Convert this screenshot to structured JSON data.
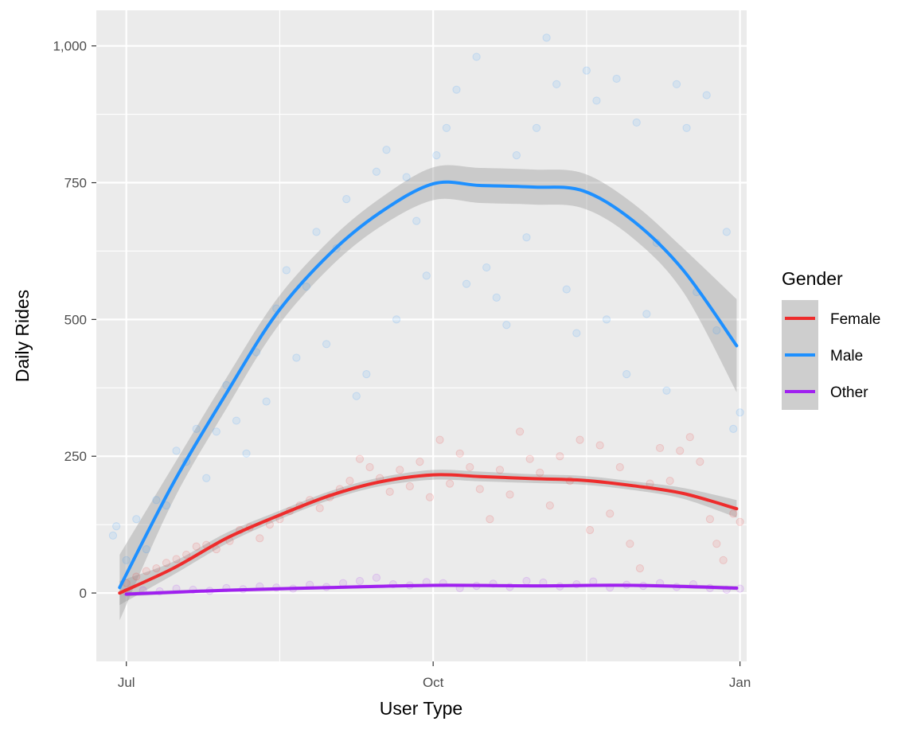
{
  "chart_data": {
    "type": "scatter",
    "title": "",
    "xlabel": "User Type",
    "ylabel": "Daily Rides",
    "x_axis": {
      "type": "date",
      "range": [
        "2018-06-22",
        "2019-01-03"
      ],
      "ticks": [
        {
          "value": "2018-07-01",
          "label": "Jul"
        },
        {
          "value": "2018-10-01",
          "label": "Oct"
        },
        {
          "value": "2019-01-01",
          "label": "Jan"
        }
      ],
      "minor_ticks": [
        "2018-08-16",
        "2018-11-16"
      ]
    },
    "y_axis": {
      "range": [
        -125,
        1065
      ],
      "ticks": [
        {
          "value": 0,
          "label": "0"
        },
        {
          "value": 250,
          "label": "250"
        },
        {
          "value": 500,
          "label": "500"
        },
        {
          "value": 750,
          "label": "750"
        },
        {
          "value": 1000,
          "label": "1,000"
        }
      ],
      "minor_ticks": [
        125,
        375,
        625,
        875
      ]
    },
    "grid": true,
    "legend": {
      "title": "Gender",
      "placement": "right",
      "entries": [
        "Female",
        "Male",
        "Other"
      ]
    },
    "series": [
      {
        "name": "Female",
        "color": "#EE2C2C",
        "smooth": [
          [
            "2018-06-29",
            0
          ],
          [
            "2018-07-15",
            45
          ],
          [
            "2018-07-31",
            100
          ],
          [
            "2018-08-15",
            140
          ],
          [
            "2018-08-31",
            178
          ],
          [
            "2018-09-15",
            203
          ],
          [
            "2018-10-01",
            216
          ],
          [
            "2018-10-15",
            213
          ],
          [
            "2018-10-31",
            209
          ],
          [
            "2018-11-15",
            206
          ],
          [
            "2018-11-30",
            196
          ],
          [
            "2018-12-15",
            182
          ],
          [
            "2018-12-31",
            154
          ]
        ],
        "band_halfwidth": [
          22,
          12,
          10,
          8,
          8,
          8,
          9,
          9,
          8,
          8,
          8,
          10,
          16
        ],
        "points": [
          [
            "2018-07-01",
            18
          ],
          [
            "2018-07-04",
            30
          ],
          [
            "2018-07-07",
            40
          ],
          [
            "2018-07-10",
            45
          ],
          [
            "2018-07-13",
            55
          ],
          [
            "2018-07-16",
            62
          ],
          [
            "2018-07-19",
            70
          ],
          [
            "2018-07-22",
            85
          ],
          [
            "2018-07-25",
            88
          ],
          [
            "2018-07-28",
            80
          ],
          [
            "2018-08-01",
            95
          ],
          [
            "2018-08-04",
            115
          ],
          [
            "2018-08-07",
            120
          ],
          [
            "2018-08-10",
            100
          ],
          [
            "2018-08-13",
            125
          ],
          [
            "2018-08-16",
            135
          ],
          [
            "2018-08-19",
            150
          ],
          [
            "2018-08-22",
            160
          ],
          [
            "2018-08-25",
            170
          ],
          [
            "2018-08-28",
            155
          ],
          [
            "2018-08-31",
            175
          ],
          [
            "2018-09-03",
            190
          ],
          [
            "2018-09-06",
            205
          ],
          [
            "2018-09-09",
            245
          ],
          [
            "2018-09-12",
            230
          ],
          [
            "2018-09-15",
            210
          ],
          [
            "2018-09-18",
            185
          ],
          [
            "2018-09-21",
            225
          ],
          [
            "2018-09-24",
            195
          ],
          [
            "2018-09-27",
            240
          ],
          [
            "2018-09-30",
            175
          ],
          [
            "2018-10-03",
            280
          ],
          [
            "2018-10-06",
            200
          ],
          [
            "2018-10-09",
            255
          ],
          [
            "2018-10-12",
            230
          ],
          [
            "2018-10-15",
            190
          ],
          [
            "2018-10-18",
            135
          ],
          [
            "2018-10-21",
            225
          ],
          [
            "2018-10-24",
            180
          ],
          [
            "2018-10-27",
            295
          ],
          [
            "2018-10-30",
            245
          ],
          [
            "2018-11-02",
            220
          ],
          [
            "2018-11-05",
            160
          ],
          [
            "2018-11-08",
            250
          ],
          [
            "2018-11-11",
            205
          ],
          [
            "2018-11-14",
            280
          ],
          [
            "2018-11-17",
            115
          ],
          [
            "2018-11-20",
            270
          ],
          [
            "2018-11-23",
            145
          ],
          [
            "2018-11-26",
            230
          ],
          [
            "2018-11-29",
            90
          ],
          [
            "2018-12-02",
            45
          ],
          [
            "2018-12-05",
            200
          ],
          [
            "2018-12-08",
            265
          ],
          [
            "2018-12-11",
            205
          ],
          [
            "2018-12-14",
            260
          ],
          [
            "2018-12-17",
            285
          ],
          [
            "2018-12-20",
            240
          ],
          [
            "2018-12-23",
            135
          ],
          [
            "2018-12-25",
            90
          ],
          [
            "2018-12-27",
            60
          ],
          [
            "2018-12-30",
            145
          ],
          [
            "2019-01-01",
            130
          ]
        ]
      },
      {
        "name": "Male",
        "color": "#1E90FF",
        "smooth": [
          [
            "2018-06-29",
            10
          ],
          [
            "2018-07-15",
            200
          ],
          [
            "2018-07-31",
            365
          ],
          [
            "2018-08-15",
            510
          ],
          [
            "2018-08-31",
            620
          ],
          [
            "2018-09-15",
            695
          ],
          [
            "2018-10-01",
            748
          ],
          [
            "2018-10-15",
            745
          ],
          [
            "2018-10-31",
            742
          ],
          [
            "2018-11-15",
            735
          ],
          [
            "2018-11-30",
            680
          ],
          [
            "2018-12-15",
            590
          ],
          [
            "2018-12-31",
            452
          ]
        ],
        "band_halfwidth": [
          60,
          32,
          28,
          26,
          25,
          26,
          30,
          32,
          32,
          32,
          32,
          40,
          85
        ],
        "points": [
          [
            "2018-06-27",
            105
          ],
          [
            "2018-06-28",
            122
          ],
          [
            "2018-07-01",
            60
          ],
          [
            "2018-07-04",
            135
          ],
          [
            "2018-07-07",
            80
          ],
          [
            "2018-07-10",
            170
          ],
          [
            "2018-07-13",
            160
          ],
          [
            "2018-07-16",
            260
          ],
          [
            "2018-07-19",
            240
          ],
          [
            "2018-07-22",
            300
          ],
          [
            "2018-07-25",
            210
          ],
          [
            "2018-07-28",
            295
          ],
          [
            "2018-07-31",
            380
          ],
          [
            "2018-08-03",
            315
          ],
          [
            "2018-08-06",
            255
          ],
          [
            "2018-08-09",
            440
          ],
          [
            "2018-08-12",
            350
          ],
          [
            "2018-08-15",
            520
          ],
          [
            "2018-08-18",
            590
          ],
          [
            "2018-08-21",
            430
          ],
          [
            "2018-08-24",
            560
          ],
          [
            "2018-08-27",
            660
          ],
          [
            "2018-08-30",
            455
          ],
          [
            "2018-09-02",
            630
          ],
          [
            "2018-09-05",
            720
          ],
          [
            "2018-09-08",
            360
          ],
          [
            "2018-09-11",
            400
          ],
          [
            "2018-09-14",
            770
          ],
          [
            "2018-09-17",
            810
          ],
          [
            "2018-09-20",
            500
          ],
          [
            "2018-09-23",
            760
          ],
          [
            "2018-09-26",
            680
          ],
          [
            "2018-09-29",
            580
          ],
          [
            "2018-10-02",
            800
          ],
          [
            "2018-10-05",
            850
          ],
          [
            "2018-10-08",
            920
          ],
          [
            "2018-10-11",
            565
          ],
          [
            "2018-10-14",
            980
          ],
          [
            "2018-10-17",
            595
          ],
          [
            "2018-10-20",
            540
          ],
          [
            "2018-10-23",
            490
          ],
          [
            "2018-10-26",
            800
          ],
          [
            "2018-10-29",
            650
          ],
          [
            "2018-11-01",
            850
          ],
          [
            "2018-11-04",
            1015
          ],
          [
            "2018-11-07",
            930
          ],
          [
            "2018-11-10",
            555
          ],
          [
            "2018-11-13",
            475
          ],
          [
            "2018-11-16",
            955
          ],
          [
            "2018-11-19",
            900
          ],
          [
            "2018-11-22",
            500
          ],
          [
            "2018-11-25",
            940
          ],
          [
            "2018-11-28",
            400
          ],
          [
            "2018-12-01",
            860
          ],
          [
            "2018-12-04",
            510
          ],
          [
            "2018-12-07",
            640
          ],
          [
            "2018-12-10",
            370
          ],
          [
            "2018-12-13",
            930
          ],
          [
            "2018-12-16",
            850
          ],
          [
            "2018-12-19",
            550
          ],
          [
            "2018-12-22",
            910
          ],
          [
            "2018-12-25",
            480
          ],
          [
            "2018-12-28",
            660
          ],
          [
            "2018-12-30",
            300
          ],
          [
            "2019-01-01",
            330
          ]
        ]
      },
      {
        "name": "Other",
        "color": "#A020F0",
        "smooth": [
          [
            "2018-07-01",
            -2
          ],
          [
            "2018-07-31",
            5
          ],
          [
            "2018-08-31",
            10
          ],
          [
            "2018-10-01",
            14
          ],
          [
            "2018-10-31",
            13
          ],
          [
            "2018-11-30",
            14
          ],
          [
            "2018-12-31",
            9
          ]
        ],
        "band_halfwidth": [
          4,
          3,
          3,
          3,
          3,
          3,
          4
        ],
        "points": [
          [
            "2018-07-01",
            2
          ],
          [
            "2018-07-06",
            5
          ],
          [
            "2018-07-11",
            3
          ],
          [
            "2018-07-16",
            8
          ],
          [
            "2018-07-21",
            6
          ],
          [
            "2018-07-26",
            4
          ],
          [
            "2018-07-31",
            9
          ],
          [
            "2018-08-05",
            7
          ],
          [
            "2018-08-10",
            12
          ],
          [
            "2018-08-15",
            10
          ],
          [
            "2018-08-20",
            8
          ],
          [
            "2018-08-25",
            15
          ],
          [
            "2018-08-30",
            11
          ],
          [
            "2018-09-04",
            18
          ],
          [
            "2018-09-09",
            22
          ],
          [
            "2018-09-14",
            28
          ],
          [
            "2018-09-19",
            16
          ],
          [
            "2018-09-24",
            14
          ],
          [
            "2018-09-29",
            20
          ],
          [
            "2018-10-04",
            18
          ],
          [
            "2018-10-09",
            9
          ],
          [
            "2018-10-14",
            13
          ],
          [
            "2018-10-19",
            17
          ],
          [
            "2018-10-24",
            11
          ],
          [
            "2018-10-29",
            22
          ],
          [
            "2018-11-03",
            19
          ],
          [
            "2018-11-08",
            12
          ],
          [
            "2018-11-13",
            16
          ],
          [
            "2018-11-18",
            21
          ],
          [
            "2018-11-23",
            10
          ],
          [
            "2018-11-28",
            15
          ],
          [
            "2018-12-03",
            13
          ],
          [
            "2018-12-08",
            18
          ],
          [
            "2018-12-13",
            11
          ],
          [
            "2018-12-18",
            16
          ],
          [
            "2018-12-23",
            9
          ],
          [
            "2018-12-28",
            6
          ],
          [
            "2019-01-01",
            8
          ]
        ]
      }
    ]
  }
}
